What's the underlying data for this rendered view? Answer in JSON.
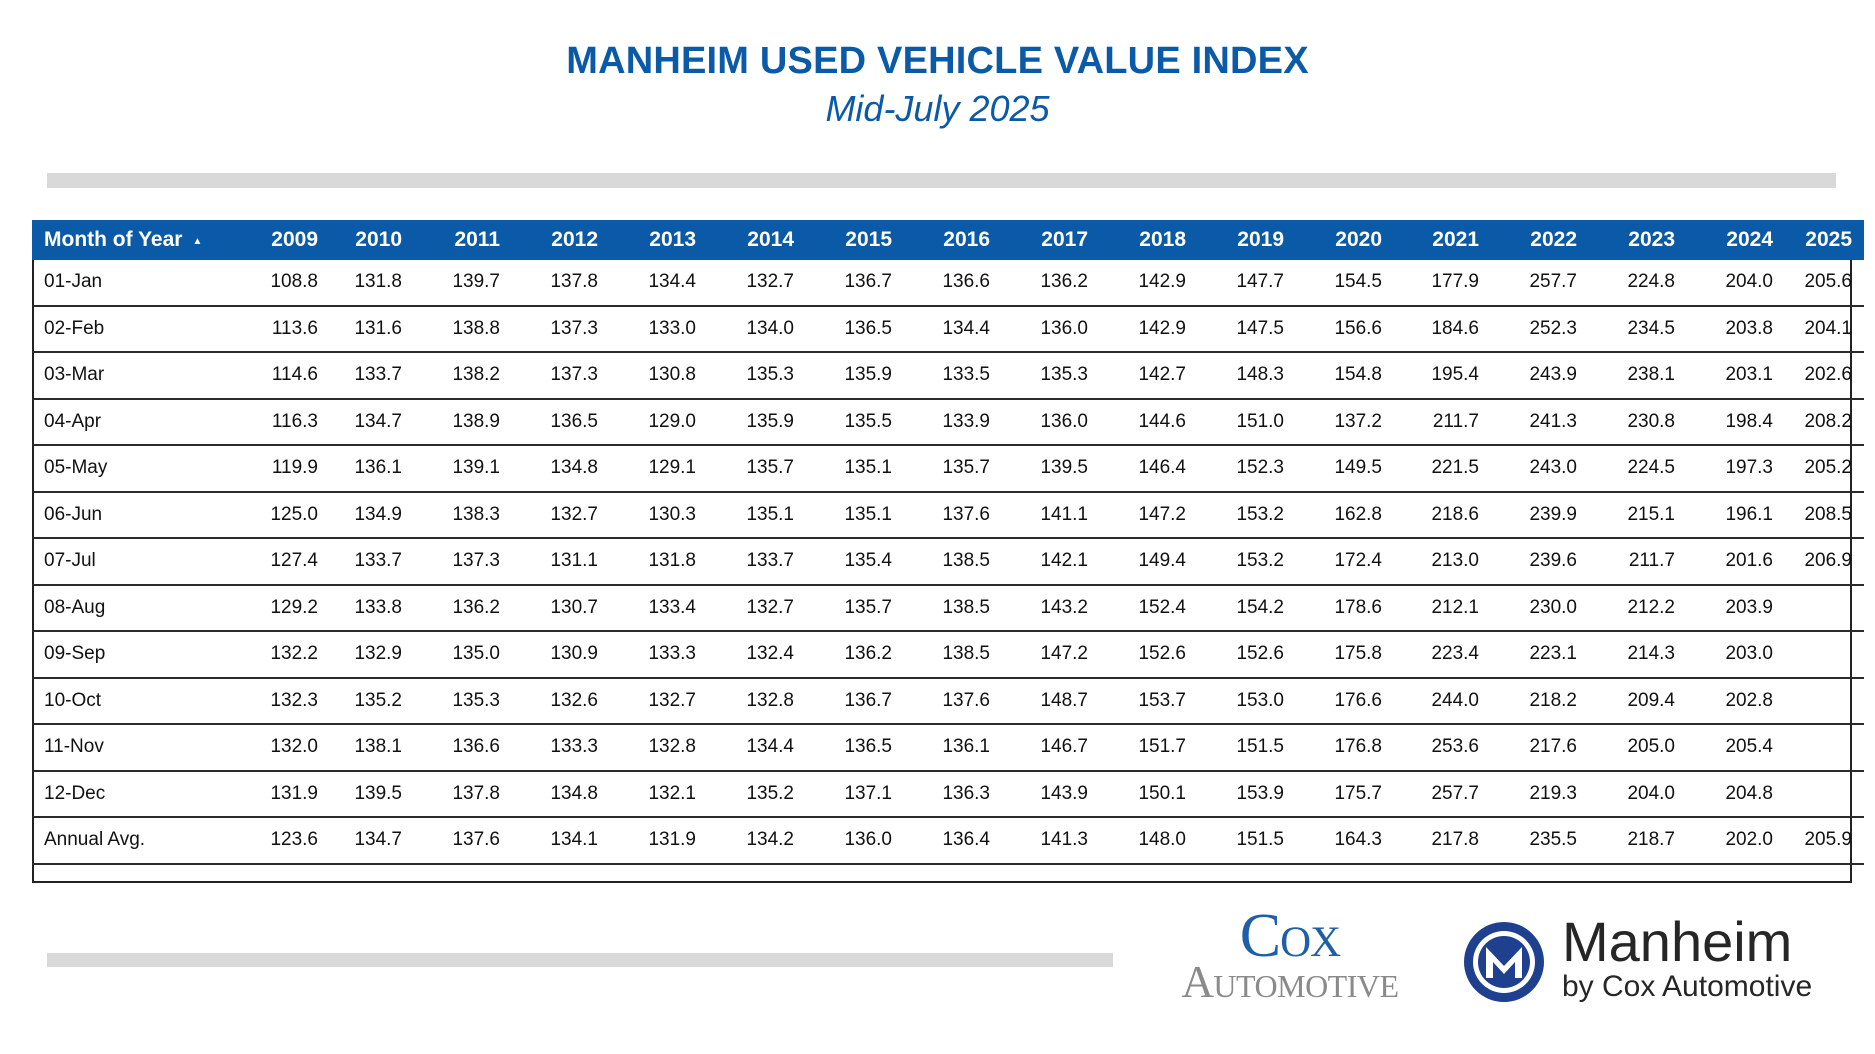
{
  "title": "MANHEIM USED VEHICLE VALUE INDEX",
  "subtitle": "Mid-July 2025",
  "colors": {
    "brand_blue": "#0a5aa8",
    "header_text": "#ffffff",
    "bar_gray": "#d9d9d9"
  },
  "chart_data": {
    "type": "table",
    "title": "MANHEIM USED VEHICLE VALUE INDEX",
    "subtitle": "Mid-July 2025",
    "row_header": "Month of Year",
    "sort_indicator": "ascending",
    "columns": [
      "2009",
      "2010",
      "2011",
      "2012",
      "2013",
      "2014",
      "2015",
      "2016",
      "2017",
      "2018",
      "2019",
      "2020",
      "2021",
      "2022",
      "2023",
      "2024",
      "2025"
    ],
    "rows": [
      {
        "label": "01-Jan",
        "values": [
          "108.8",
          "131.8",
          "139.7",
          "137.8",
          "134.4",
          "132.7",
          "136.7",
          "136.6",
          "136.2",
          "142.9",
          "147.7",
          "154.5",
          "177.9",
          "257.7",
          "224.8",
          "204.0",
          "205.6"
        ]
      },
      {
        "label": "02-Feb",
        "values": [
          "113.6",
          "131.6",
          "138.8",
          "137.3",
          "133.0",
          "134.0",
          "136.5",
          "134.4",
          "136.0",
          "142.9",
          "147.5",
          "156.6",
          "184.6",
          "252.3",
          "234.5",
          "203.8",
          "204.1"
        ]
      },
      {
        "label": "03-Mar",
        "values": [
          "114.6",
          "133.7",
          "138.2",
          "137.3",
          "130.8",
          "135.3",
          "135.9",
          "133.5",
          "135.3",
          "142.7",
          "148.3",
          "154.8",
          "195.4",
          "243.9",
          "238.1",
          "203.1",
          "202.6"
        ]
      },
      {
        "label": "04-Apr",
        "values": [
          "116.3",
          "134.7",
          "138.9",
          "136.5",
          "129.0",
          "135.9",
          "135.5",
          "133.9",
          "136.0",
          "144.6",
          "151.0",
          "137.2",
          "211.7",
          "241.3",
          "230.8",
          "198.4",
          "208.2"
        ]
      },
      {
        "label": "05-May",
        "values": [
          "119.9",
          "136.1",
          "139.1",
          "134.8",
          "129.1",
          "135.7",
          "135.1",
          "135.7",
          "139.5",
          "146.4",
          "152.3",
          "149.5",
          "221.5",
          "243.0",
          "224.5",
          "197.3",
          "205.2"
        ]
      },
      {
        "label": "06-Jun",
        "values": [
          "125.0",
          "134.9",
          "138.3",
          "132.7",
          "130.3",
          "135.1",
          "135.1",
          "137.6",
          "141.1",
          "147.2",
          "153.2",
          "162.8",
          "218.6",
          "239.9",
          "215.1",
          "196.1",
          "208.5"
        ]
      },
      {
        "label": "07-Jul",
        "values": [
          "127.4",
          "133.7",
          "137.3",
          "131.1",
          "131.8",
          "133.7",
          "135.4",
          "138.5",
          "142.1",
          "149.4",
          "153.2",
          "172.4",
          "213.0",
          "239.6",
          "211.7",
          "201.6",
          "206.9"
        ]
      },
      {
        "label": "08-Aug",
        "values": [
          "129.2",
          "133.8",
          "136.2",
          "130.7",
          "133.4",
          "132.7",
          "135.7",
          "138.5",
          "143.2",
          "152.4",
          "154.2",
          "178.6",
          "212.1",
          "230.0",
          "212.2",
          "203.9",
          ""
        ]
      },
      {
        "label": "09-Sep",
        "values": [
          "132.2",
          "132.9",
          "135.0",
          "130.9",
          "133.3",
          "132.4",
          "136.2",
          "138.5",
          "147.2",
          "152.6",
          "152.6",
          "175.8",
          "223.4",
          "223.1",
          "214.3",
          "203.0",
          ""
        ]
      },
      {
        "label": "10-Oct",
        "values": [
          "132.3",
          "135.2",
          "135.3",
          "132.6",
          "132.7",
          "132.8",
          "136.7",
          "137.6",
          "148.7",
          "153.7",
          "153.0",
          "176.6",
          "244.0",
          "218.2",
          "209.4",
          "202.8",
          ""
        ]
      },
      {
        "label": "11-Nov",
        "values": [
          "132.0",
          "138.1",
          "136.6",
          "133.3",
          "132.8",
          "134.4",
          "136.5",
          "136.1",
          "146.7",
          "151.7",
          "151.5",
          "176.8",
          "253.6",
          "217.6",
          "205.0",
          "205.4",
          ""
        ]
      },
      {
        "label": "12-Dec",
        "values": [
          "131.9",
          "139.5",
          "137.8",
          "134.8",
          "132.1",
          "135.2",
          "137.1",
          "136.3",
          "143.9",
          "150.1",
          "153.9",
          "175.7",
          "257.7",
          "219.3",
          "204.0",
          "204.8",
          ""
        ]
      },
      {
        "label": "Annual Avg.",
        "values": [
          "123.6",
          "134.7",
          "137.6",
          "134.1",
          "131.9",
          "134.2",
          "136.0",
          "136.4",
          "141.3",
          "148.0",
          "151.5",
          "164.3",
          "217.8",
          "235.5",
          "218.7",
          "202.0",
          "205.9"
        ]
      }
    ]
  },
  "logos": {
    "cox_line1": "Cox",
    "cox_line2": "Automotive",
    "manheim_name": "Manheim",
    "manheim_tagline": "by Cox Automotive",
    "manheim_mark_icon": "manheim-m-roundel-icon"
  }
}
